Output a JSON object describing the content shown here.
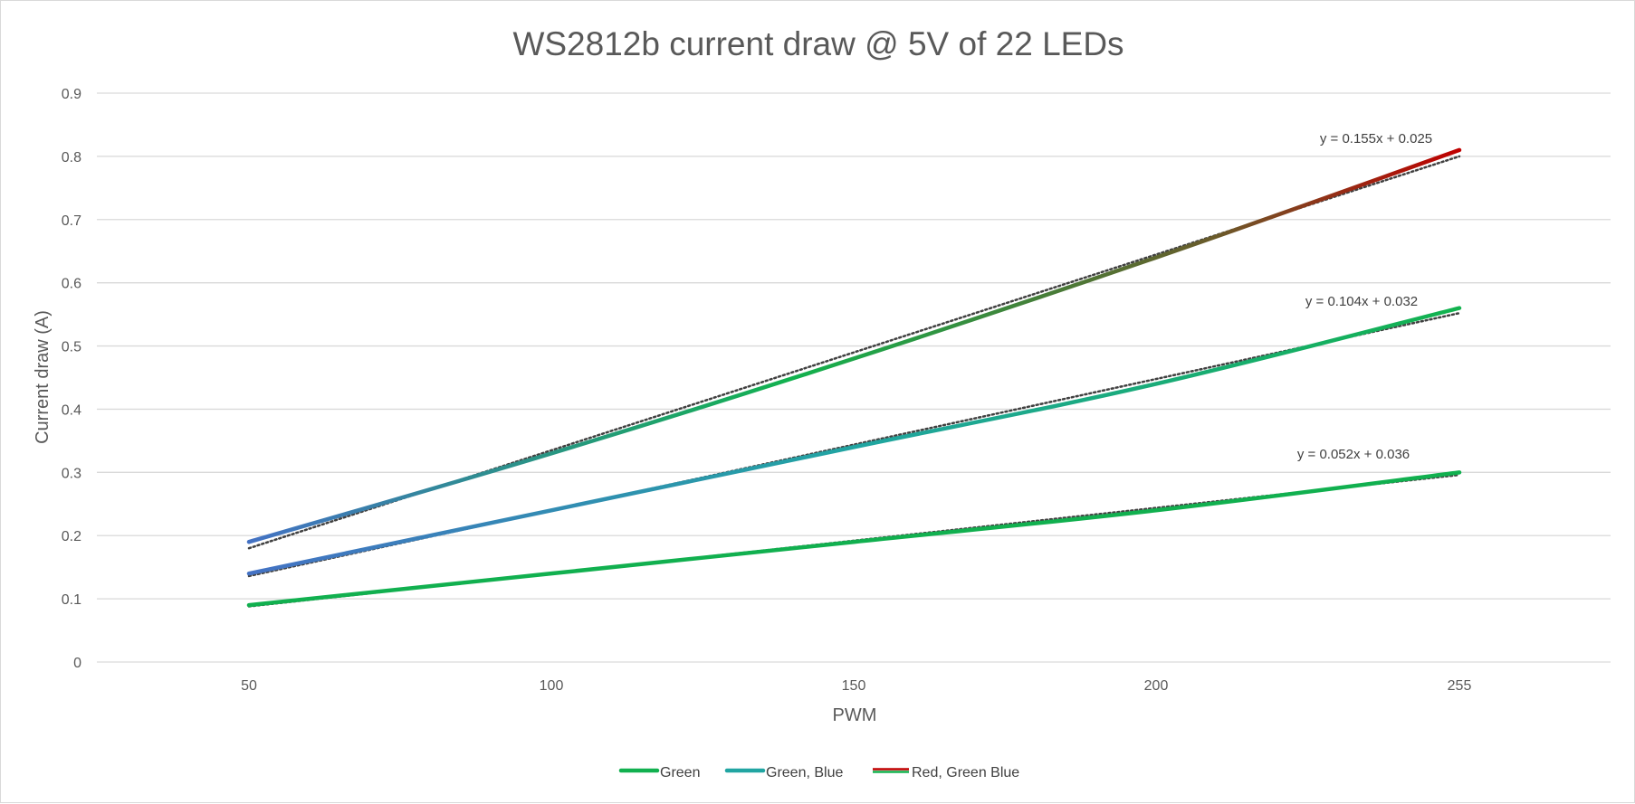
{
  "chart_data": {
    "type": "line",
    "title": "WS2812b current draw @ 5V of 22 LEDs",
    "xlabel": "PWM",
    "ylabel": "Current draw (A)",
    "x": [
      50,
      100,
      150,
      200,
      255
    ],
    "x_tick_labels": [
      "50",
      "100",
      "150",
      "200",
      "255"
    ],
    "ylim": [
      0,
      0.9
    ],
    "y_ticks": [
      0,
      0.1,
      0.2,
      0.3,
      0.4,
      0.5,
      0.6,
      0.7,
      0.8,
      0.9
    ],
    "y_tick_labels": [
      "0",
      "0.1",
      "0.2",
      "0.3",
      "0.4",
      "0.5",
      "0.6",
      "0.7",
      "0.8",
      "0.9"
    ],
    "grid": true,
    "legend_position": "bottom",
    "series": [
      {
        "name": "Green",
        "values": [
          0.09,
          0.14,
          0.19,
          0.24,
          0.3
        ],
        "color": "#11b04f",
        "trendline": {
          "equation": "y = 0.052x + 0.036",
          "slope": 0.052,
          "intercept": 0.036
        }
      },
      {
        "name": "Green, Blue",
        "values": [
          0.14,
          0.24,
          0.34,
          0.44,
          0.56
        ],
        "color_start": "#4472c4",
        "color_end": "#12b24e",
        "trendline": {
          "equation": "y = 0.104x + 0.032",
          "slope": 0.104,
          "intercept": 0.032
        }
      },
      {
        "name": "Red, Green Blue",
        "values": [
          0.19,
          0.33,
          0.48,
          0.64,
          0.81
        ],
        "color_start": "#4472c4",
        "color_mid": "#12b24e",
        "color_end": "#c00000",
        "trendline": {
          "equation": "y = 0.155x + 0.025",
          "slope": 0.155,
          "intercept": 0.025
        }
      }
    ]
  }
}
